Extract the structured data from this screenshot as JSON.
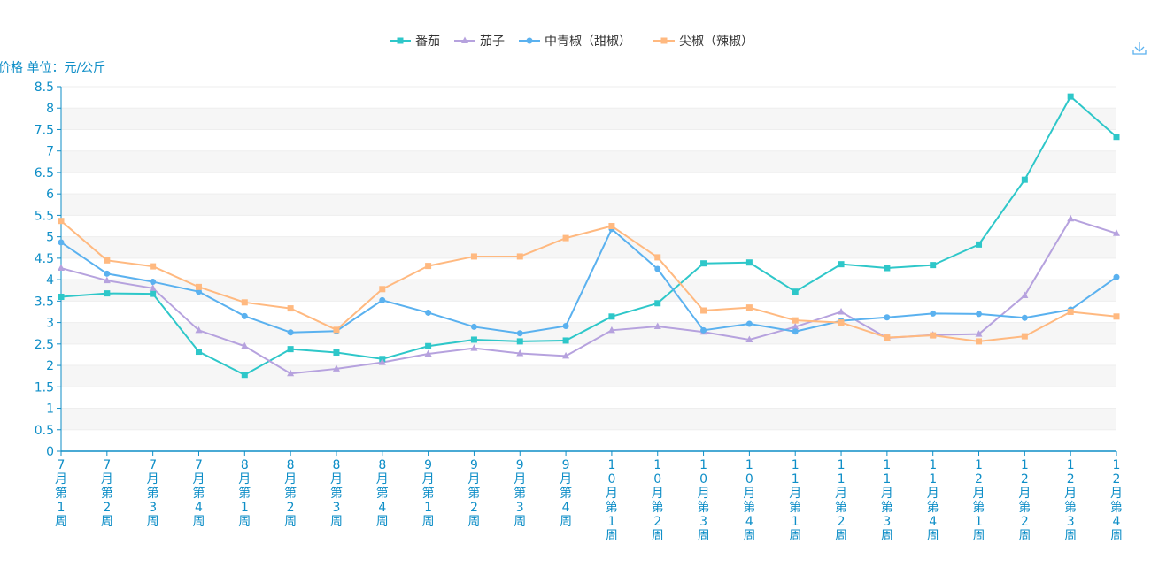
{
  "toolbox": {
    "icon": "download-icon"
  },
  "chart_data": {
    "type": "line",
    "ylabel": "价格 单位：元/公斤",
    "ylim": [
      0,
      8.5
    ],
    "ytick_step": 0.5,
    "grid": true,
    "legend_position": "top-center",
    "categories": [
      "7月第1周",
      "7月第2周",
      "7月第3周",
      "7月第4周",
      "8月第1周",
      "8月第2周",
      "8月第3周",
      "8月第4周",
      "9月第1周",
      "9月第2周",
      "9月第3周",
      "9月第4周",
      "10月第1周",
      "10月第2周",
      "10月第3周",
      "10月第4周",
      "11月第1周",
      "11月第2周",
      "11月第3周",
      "11月第4周",
      "12月第1周",
      "12月第2周",
      "12月第3周",
      "12月第4周"
    ],
    "series": [
      {
        "name": "番茄",
        "color": "#2ec7c9",
        "marker": "square",
        "values": [
          3.6,
          3.68,
          3.67,
          2.32,
          1.78,
          2.38,
          2.3,
          2.15,
          2.45,
          2.6,
          2.56,
          2.58,
          3.14,
          3.45,
          4.38,
          4.4,
          3.72,
          4.36,
          4.27,
          4.34,
          4.82,
          6.33,
          8.27,
          7.33
        ]
      },
      {
        "name": "茄子",
        "color": "#b6a2de",
        "marker": "triangle",
        "values": [
          4.27,
          3.98,
          3.8,
          2.82,
          2.45,
          1.81,
          1.92,
          2.07,
          2.27,
          2.4,
          2.28,
          2.22,
          2.82,
          2.91,
          2.78,
          2.6,
          2.9,
          3.25,
          2.64,
          2.71,
          2.73,
          3.63,
          5.42,
          5.08
        ]
      },
      {
        "name": "中青椒（甜椒）",
        "color": "#5ab1ef",
        "marker": "circle",
        "values": [
          4.87,
          4.14,
          3.95,
          3.72,
          3.15,
          2.77,
          2.8,
          3.52,
          3.23,
          2.9,
          2.75,
          2.92,
          5.18,
          4.25,
          2.82,
          2.97,
          2.79,
          3.04,
          3.12,
          3.21,
          3.2,
          3.11,
          3.3,
          4.06
        ]
      },
      {
        "name": "尖椒（辣椒）",
        "color": "#ffb980",
        "marker": "square",
        "values": [
          5.37,
          4.45,
          4.31,
          3.83,
          3.47,
          3.33,
          2.83,
          3.78,
          4.32,
          4.54,
          4.54,
          4.97,
          5.25,
          4.52,
          3.28,
          3.35,
          3.05,
          3.0,
          2.65,
          2.7,
          2.56,
          2.68,
          3.25,
          3.14
        ]
      }
    ]
  }
}
